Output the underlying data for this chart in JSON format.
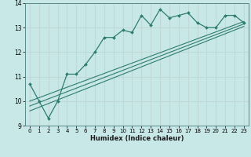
{
  "xlabel": "Humidex (Indice chaleur)",
  "background_color": "#c8e8e8",
  "grid_color": "#c0d8d8",
  "line_color": "#2e7d6e",
  "xlim": [
    -0.5,
    23.5
  ],
  "ylim": [
    9,
    14
  ],
  "xtick_labels": [
    "0",
    "1",
    "2",
    "3",
    "4",
    "5",
    "6",
    "7",
    "8",
    "9",
    "10",
    "11",
    "12",
    "13",
    "14",
    "15",
    "16",
    "17",
    "18",
    "19",
    "20",
    "21",
    "22",
    "23"
  ],
  "xticks": [
    0,
    1,
    2,
    3,
    4,
    5,
    6,
    7,
    8,
    9,
    10,
    11,
    12,
    13,
    14,
    15,
    16,
    17,
    18,
    19,
    20,
    21,
    22,
    23
  ],
  "yticks": [
    9,
    10,
    11,
    12,
    13,
    14
  ],
  "main_x": [
    0,
    1,
    2,
    3,
    4,
    5,
    6,
    7,
    8,
    9,
    10,
    11,
    12,
    13,
    14,
    15,
    16,
    17,
    18,
    19,
    20,
    21,
    22,
    23
  ],
  "main_y": [
    10.7,
    10.0,
    9.3,
    10.0,
    11.1,
    11.1,
    11.5,
    12.0,
    12.6,
    12.6,
    12.9,
    12.8,
    13.5,
    13.1,
    13.75,
    13.4,
    13.5,
    13.6,
    13.2,
    13.0,
    13.0,
    13.5,
    13.5,
    13.2
  ],
  "line1_x": [
    0,
    23
  ],
  "line1_y": [
    9.6,
    13.05
  ],
  "line2_x": [
    0,
    23
  ],
  "line2_y": [
    9.8,
    13.15
  ],
  "line3_x": [
    0,
    23
  ],
  "line3_y": [
    10.0,
    13.25
  ]
}
